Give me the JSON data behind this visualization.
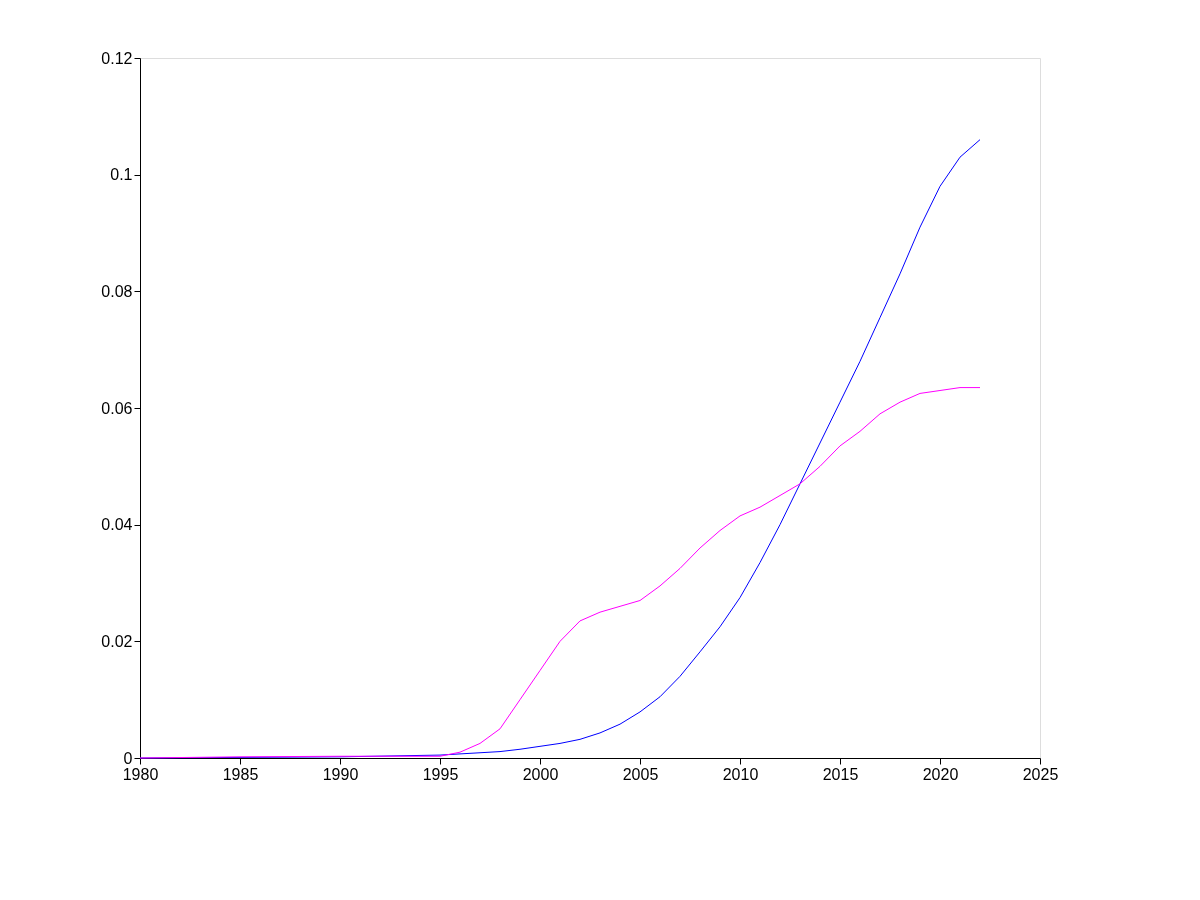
{
  "chart_data": {
    "type": "line",
    "x": [
      1980,
      1985,
      1990,
      1995,
      1996,
      1997,
      1998,
      1999,
      2000,
      2001,
      2002,
      2003,
      2004,
      2005,
      2006,
      2007,
      2008,
      2009,
      2010,
      2011,
      2012,
      2013,
      2014,
      2015,
      2016,
      2017,
      2018,
      2019,
      2020,
      2021,
      2022
    ],
    "series": [
      {
        "color": "#0000ff",
        "values": [
          0,
          0.0001,
          0.0002,
          0.0005,
          0.0007,
          0.0009,
          0.0011,
          0.0015,
          0.002,
          0.0025,
          0.0032,
          0.0043,
          0.0058,
          0.0079,
          0.0105,
          0.014,
          0.0182,
          0.0225,
          0.0275,
          0.0335,
          0.04,
          0.047,
          0.054,
          0.061,
          0.068,
          0.0755,
          0.083,
          0.091,
          0.098,
          0.103,
          0.106
        ]
      },
      {
        "color": "#ff00ff",
        "values": [
          0,
          0.0002,
          0.0003,
          0.0003,
          0.001,
          0.0025,
          0.005,
          0.01,
          0.015,
          0.02,
          0.0235,
          0.025,
          0.026,
          0.027,
          0.0295,
          0.0325,
          0.036,
          0.039,
          0.0415,
          0.043,
          0.045,
          0.047,
          0.05,
          0.0535,
          0.056,
          0.059,
          0.061,
          0.0625,
          0.063,
          0.0635,
          0.0635
        ]
      }
    ],
    "xlim": [
      1980,
      2025
    ],
    "xticks": [
      1980,
      1985,
      1990,
      1995,
      2000,
      2005,
      2010,
      2015,
      2020,
      2025
    ],
    "ylim": [
      0,
      0.12
    ],
    "yticks": [
      0,
      0.02,
      0.04,
      0.06,
      0.08,
      0.1,
      0.12
    ],
    "grid": false,
    "legend": false
  }
}
